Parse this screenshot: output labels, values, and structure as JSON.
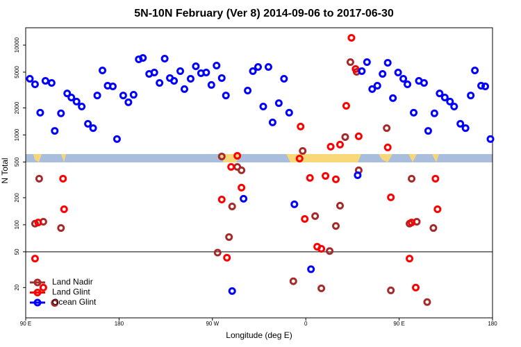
{
  "chart_data": {
    "type": "scatter",
    "title": "5N-10N February (Ver 8)   2014-09-06 to 2017-06-30",
    "x_label": "Longitude (deg E)",
    "y_label": "N Total",
    "xlim": [
      90,
      540
    ],
    "xticks": [
      {
        "value": 90,
        "label": "90 E"
      },
      180,
      {
        "value": 270,
        "label": "90 W"
      },
      {
        "value": 360,
        "label": "0"
      },
      {
        "value": 450,
        "label": "90 E"
      },
      {
        "value": 540,
        "label": "180"
      }
    ],
    "ylim": [
      9.2,
      15600
    ],
    "log_y": true,
    "yticks": [
      20,
      50,
      100,
      200,
      500,
      1000,
      2000,
      5000,
      10000
    ],
    "reference_line": 50,
    "legend": "bottom-left",
    "series": [
      {
        "name": "Land Nadir",
        "color": "#a52a2a",
        "x": [
          103,
          99,
          107,
          118,
          124,
          275,
          279,
          286,
          289,
          294,
          298,
          348,
          357,
          369,
          375,
          383,
          389,
          393,
          398,
          403,
          409,
          411,
          438,
          442,
          460,
          462,
          467,
          477,
          483
        ],
        "values": [
          326,
          103,
          108,
          13.5,
          92,
          49,
          576,
          73,
          160,
          441,
          404,
          23.5,
          664,
          125,
          19.6,
          51,
          97,
          163,
          948,
          6470,
          5040,
          404,
          1190,
          18.6,
          103,
          326,
          108,
          13.8,
          92
        ]
      },
      {
        "name": "Land Glint",
        "color": "#ff0000",
        "x": [
          99,
          102,
          107,
          126,
          127,
          279,
          284,
          288,
          294,
          298,
          354,
          355,
          359,
          364,
          371,
          375,
          379,
          384,
          389,
          393,
          399,
          404,
          408,
          411,
          439,
          442,
          460,
          462,
          466,
          485,
          487
        ],
        "values": [
          42,
          106,
          20,
          326,
          149,
          191,
          43,
          441,
          586,
          259,
          546,
          1240,
          116,
          332,
          57,
          54,
          350,
          740,
          321,
          780,
          2110,
          12050,
          5420,
          966,
          726,
          202,
          42,
          106,
          20,
          326,
          149
        ]
      },
      {
        "name": "Ocean Glint",
        "color": "#0000ff",
        "x": [
          94,
          99,
          104,
          109,
          115,
          118,
          124,
          130,
          134,
          139,
          144,
          150,
          155,
          159,
          164,
          169,
          174,
          178,
          184,
          189,
          194,
          199,
          203,
          209,
          214,
          219,
          224,
          229,
          233,
          239,
          243,
          249,
          254,
          259,
          264,
          269,
          274,
          279,
          283,
          289,
          300,
          304,
          309,
          314,
          319,
          324,
          328,
          334,
          339,
          344,
          349,
          365,
          410,
          414,
          419,
          424,
          429,
          434,
          439,
          444,
          449,
          454,
          458,
          464,
          469,
          474,
          478,
          484,
          489,
          494,
          499,
          503,
          509,
          514,
          519,
          523,
          529,
          533,
          538
        ],
        "values": [
          4220,
          3660,
          1770,
          4000,
          3790,
          1110,
          1740,
          2900,
          2610,
          2350,
          2070,
          1330,
          1190,
          2750,
          5220,
          3530,
          3470,
          900,
          2750,
          2310,
          2800,
          6950,
          7200,
          4780,
          4950,
          3790,
          7070,
          4300,
          4000,
          5130,
          3240,
          4220,
          5810,
          4870,
          4950,
          3600,
          5920,
          4300,
          2750,
          18.3,
          195,
          3120,
          5130,
          5710,
          2070,
          5710,
          1380,
          2260,
          4220,
          1770,
          169,
          32,
          356,
          5130,
          6470,
          3240,
          3530,
          4780,
          6360,
          2570,
          4950,
          4220,
          3660,
          1770,
          4000,
          3790,
          1110,
          1740,
          2900,
          2610,
          2350,
          2070,
          1330,
          1190,
          2750,
          5220,
          3530,
          3470,
          900
        ]
      }
    ]
  }
}
